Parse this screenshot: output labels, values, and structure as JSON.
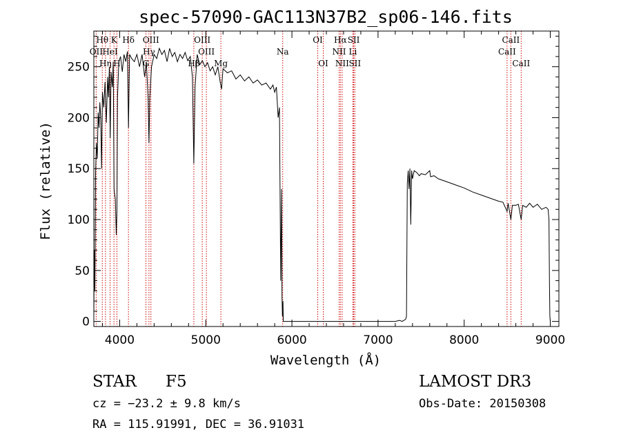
{
  "chart_data": {
    "type": "line",
    "title": "spec-57090-GAC113N37B2_sp06-146.fits",
    "xlabel": "Wavelength (Å)",
    "ylabel": "Flux (relative)",
    "xlim": [
      3700,
      9100
    ],
    "ylim": [
      -5,
      285
    ],
    "x_ticks": [
      4000,
      5000,
      6000,
      7000,
      8000,
      9000
    ],
    "y_ticks": [
      0,
      50,
      100,
      150,
      200,
      250
    ],
    "x_tick_labels": [
      "4000",
      "5000",
      "6000",
      "7000",
      "8000",
      "9000"
    ],
    "y_tick_labels": [
      "0",
      "50",
      "100",
      "150",
      "200",
      "250"
    ],
    "series": [
      {
        "name": "flux",
        "points": [
          [
            3700,
            5
          ],
          [
            3705,
            70
          ],
          [
            3712,
            30
          ],
          [
            3720,
            145
          ],
          [
            3730,
            175
          ],
          [
            3740,
            160
          ],
          [
            3750,
            205
          ],
          [
            3760,
            190
          ],
          [
            3770,
            215
          ],
          [
            3780,
            200
          ],
          [
            3790,
            150
          ],
          [
            3800,
            225
          ],
          [
            3815,
            210
          ],
          [
            3830,
            235
          ],
          [
            3845,
            195
          ],
          [
            3860,
            240
          ],
          [
            3870,
            220
          ],
          [
            3880,
            250
          ],
          [
            3890,
            180
          ],
          [
            3900,
            245
          ],
          [
            3915,
            230
          ],
          [
            3925,
            255
          ],
          [
            3935,
            130
          ],
          [
            3950,
            120
          ],
          [
            3960,
            85
          ],
          [
            3968,
            110
          ],
          [
            3975,
            220
          ],
          [
            3990,
            255
          ],
          [
            4010,
            260
          ],
          [
            4030,
            245
          ],
          [
            4050,
            262
          ],
          [
            4070,
            255
          ],
          [
            4090,
            265
          ],
          [
            4102,
            190
          ],
          [
            4115,
            262
          ],
          [
            4140,
            258
          ],
          [
            4170,
            255
          ],
          [
            4200,
            262
          ],
          [
            4230,
            250
          ],
          [
            4260,
            262
          ],
          [
            4290,
            240
          ],
          [
            4310,
            255
          ],
          [
            4330,
            220
          ],
          [
            4340,
            175
          ],
          [
            4350,
            220
          ],
          [
            4370,
            250
          ],
          [
            4400,
            262
          ],
          [
            4430,
            258
          ],
          [
            4460,
            268
          ],
          [
            4490,
            262
          ],
          [
            4520,
            266
          ],
          [
            4550,
            255
          ],
          [
            4580,
            268
          ],
          [
            4610,
            260
          ],
          [
            4640,
            264
          ],
          [
            4670,
            255
          ],
          [
            4700,
            262
          ],
          [
            4730,
            258
          ],
          [
            4760,
            264
          ],
          [
            4790,
            256
          ],
          [
            4820,
            260
          ],
          [
            4845,
            240
          ],
          [
            4861,
            155
          ],
          [
            4875,
            230
          ],
          [
            4900,
            262
          ],
          [
            4930,
            252
          ],
          [
            4960,
            256
          ],
          [
            4990,
            250
          ],
          [
            5020,
            254
          ],
          [
            5050,
            246
          ],
          [
            5080,
            250
          ],
          [
            5110,
            242
          ],
          [
            5140,
            250
          ],
          [
            5167,
            235
          ],
          [
            5183,
            228
          ],
          [
            5200,
            248
          ],
          [
            5250,
            244
          ],
          [
            5300,
            246
          ],
          [
            5350,
            238
          ],
          [
            5400,
            242
          ],
          [
            5450,
            236
          ],
          [
            5500,
            240
          ],
          [
            5550,
            234
          ],
          [
            5600,
            237
          ],
          [
            5650,
            232
          ],
          [
            5700,
            234
          ],
          [
            5750,
            228
          ],
          [
            5780,
            232
          ],
          [
            5800,
            225
          ],
          [
            5820,
            230
          ],
          [
            5840,
            200
          ],
          [
            5855,
            210
          ],
          [
            5870,
            40
          ],
          [
            5880,
            130
          ],
          [
            5885,
            25
          ],
          [
            5890,
            5
          ],
          [
            5896,
            20
          ],
          [
            5900,
            0
          ],
          [
            6000,
            0
          ],
          [
            6500,
            0
          ],
          [
            7000,
            0
          ],
          [
            7200,
            0
          ],
          [
            7250,
            1
          ],
          [
            7280,
            0
          ],
          [
            7300,
            1
          ],
          [
            7320,
            2
          ],
          [
            7330,
            5
          ],
          [
            7335,
            70
          ],
          [
            7340,
            135
          ],
          [
            7350,
            148
          ],
          [
            7360,
            130
          ],
          [
            7370,
            150
          ],
          [
            7380,
            95
          ],
          [
            7390,
            148
          ],
          [
            7400,
            140
          ],
          [
            7420,
            148
          ],
          [
            7450,
            146
          ],
          [
            7480,
            143
          ],
          [
            7500,
            145
          ],
          [
            7550,
            144
          ],
          [
            7600,
            148
          ],
          [
            7610,
            142
          ],
          [
            7650,
            143
          ],
          [
            7700,
            140
          ],
          [
            7800,
            137
          ],
          [
            7900,
            134
          ],
          [
            8000,
            131
          ],
          [
            8100,
            127
          ],
          [
            8200,
            124
          ],
          [
            8300,
            121
          ],
          [
            8400,
            118
          ],
          [
            8450,
            117
          ],
          [
            8498,
            108
          ],
          [
            8510,
            116
          ],
          [
            8542,
            100
          ],
          [
            8560,
            114
          ],
          [
            8600,
            114
          ],
          [
            8630,
            115
          ],
          [
            8662,
            100
          ],
          [
            8680,
            114
          ],
          [
            8720,
            112
          ],
          [
            8760,
            116
          ],
          [
            8800,
            112
          ],
          [
            8850,
            115
          ],
          [
            8900,
            110
          ],
          [
            8950,
            112
          ],
          [
            8975,
            110
          ],
          [
            8985,
            100
          ],
          [
            8990,
            40
          ],
          [
            8995,
            5
          ],
          [
            9000,
            0
          ]
        ]
      }
    ],
    "spectral_lines": [
      {
        "label": "Hθ",
        "wavelength": 3798,
        "row": 1
      },
      {
        "label": "OII",
        "wavelength": 3727,
        "row": 2
      },
      {
        "label": "Hη",
        "wavelength": 3835,
        "row": 3
      },
      {
        "label": "K",
        "wavelength": 3934,
        "row": 1
      },
      {
        "label": "HeI",
        "wavelength": 3889,
        "row": 2
      },
      {
        "label": "H",
        "wavelength": 3968,
        "row": 3
      },
      {
        "label": "Hδ",
        "wavelength": 4102,
        "row": 1
      },
      {
        "label": "OIII",
        "wavelength": 4363,
        "row": 1
      },
      {
        "label": "Hγ",
        "wavelength": 4340,
        "row": 2
      },
      {
        "label": "G",
        "wavelength": 4305,
        "row": 3
      },
      {
        "label": "OIII",
        "wavelength": 4959,
        "row": 1
      },
      {
        "label": "OIII",
        "wavelength": 5007,
        "row": 2
      },
      {
        "label": "Hβ",
        "wavelength": 4861,
        "row": 3
      },
      {
        "label": "Mg",
        "wavelength": 5175,
        "row": 3
      },
      {
        "label": "Na",
        "wavelength": 5893,
        "row": 2
      },
      {
        "label": "OI",
        "wavelength": 6300,
        "row": 1
      },
      {
        "label": "OI",
        "wavelength": 6364,
        "row": 3
      },
      {
        "label": "Hα",
        "wavelength": 6563,
        "row": 1
      },
      {
        "label": "SII",
        "wavelength": 6717,
        "row": 1
      },
      {
        "label": "NII",
        "wavelength": 6548,
        "row": 2
      },
      {
        "label": "Li",
        "wavelength": 6708,
        "row": 2
      },
      {
        "label": "NII",
        "wavelength": 6583,
        "row": 3
      },
      {
        "label": "SII",
        "wavelength": 6731,
        "row": 3
      },
      {
        "label": "CaII",
        "wavelength": 8542,
        "row": 1
      },
      {
        "label": "CaII",
        "wavelength": 8498,
        "row": 2
      },
      {
        "label": "CaII",
        "wavelength": 8662,
        "row": 3
      }
    ]
  },
  "info": {
    "object_class": "STAR",
    "subclass": "F5",
    "survey": "LAMOST DR3",
    "redshift": "cz = −23.2 ± 9.8 km/s",
    "obs_date": "Obs-Date: 20150308",
    "coords": "RA = 115.91991, DEC =  36.91031"
  },
  "colors": {
    "spectrum": "#000000",
    "line_marker": "#cc0000",
    "axes": "#000000",
    "background": "#ffffff"
  }
}
